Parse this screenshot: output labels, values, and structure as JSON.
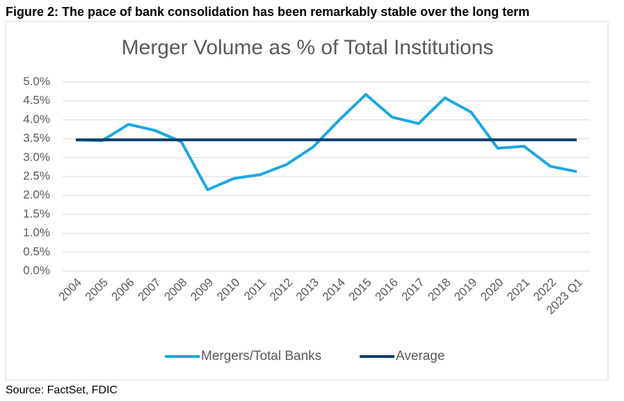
{
  "figure_title": "Figure 2: The pace of bank consolidation has been remarkably stable over the long term",
  "source": "Source: FactSet, FDIC",
  "chart_data": {
    "type": "line",
    "title": "Merger Volume as % of Total Institutions",
    "categories": [
      "2004",
      "2005",
      "2006",
      "2007",
      "2008",
      "2009",
      "2010",
      "2011",
      "2012",
      "2013",
      "2014",
      "2015",
      "2016",
      "2017",
      "2018",
      "2019",
      "2020",
      "2021",
      "2022",
      "2023 Q1"
    ],
    "series": [
      {
        "name": "Mergers/Total Banks",
        "color": "#1aa7e4",
        "values": [
          3.47,
          3.45,
          3.88,
          3.72,
          3.42,
          2.15,
          2.45,
          2.55,
          2.82,
          3.28,
          4.0,
          4.67,
          4.07,
          3.9,
          4.58,
          4.2,
          3.25,
          3.3,
          2.77,
          2.63
        ]
      },
      {
        "name": "Average",
        "color": "#0b3d6e",
        "values": [
          3.47,
          3.47,
          3.47,
          3.47,
          3.47,
          3.47,
          3.47,
          3.47,
          3.47,
          3.47,
          3.47,
          3.47,
          3.47,
          3.47,
          3.47,
          3.47,
          3.47,
          3.47,
          3.47,
          3.47
        ]
      }
    ],
    "ylim": [
      0,
      5
    ],
    "yticks": [
      {
        "value": 0,
        "label": "0.0%"
      },
      {
        "value": 0.5,
        "label": "0.5%"
      },
      {
        "value": 1,
        "label": "1.0%"
      },
      {
        "value": 1.5,
        "label": "1.5%"
      },
      {
        "value": 2,
        "label": "2.0%"
      },
      {
        "value": 2.5,
        "label": "2.5%"
      },
      {
        "value": 3,
        "label": "3.0%"
      },
      {
        "value": 3.5,
        "label": "3.5%"
      },
      {
        "value": 4,
        "label": "4.0%"
      },
      {
        "value": 4.5,
        "label": "4.5%"
      },
      {
        "value": 5,
        "label": "5.0%"
      }
    ],
    "grid": true,
    "legend": "bottom"
  }
}
